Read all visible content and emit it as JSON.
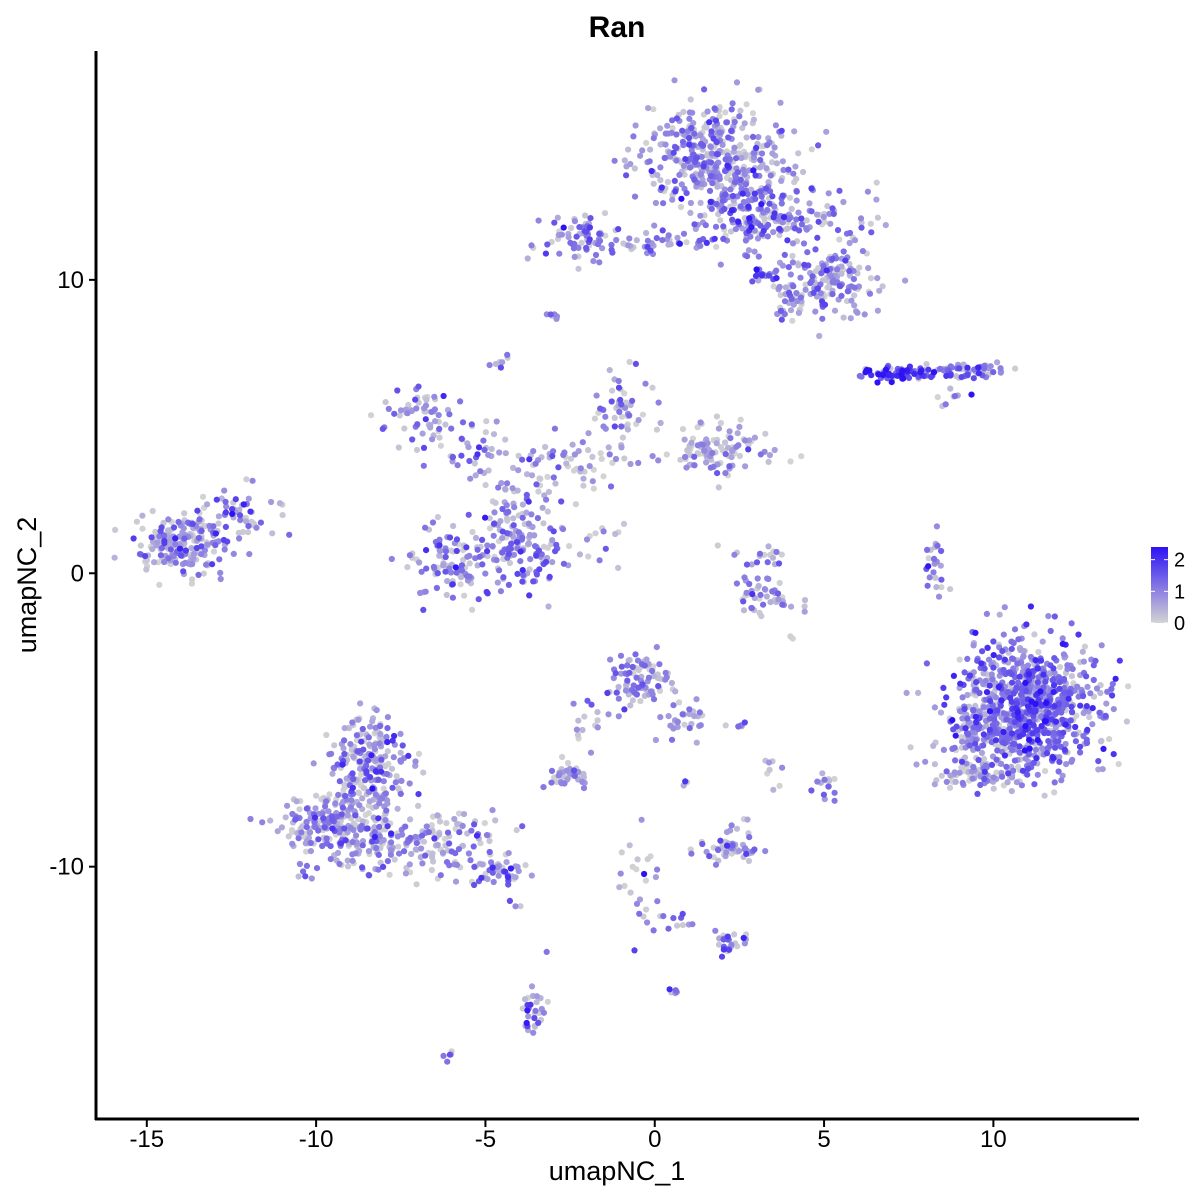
{
  "chart_data": {
    "type": "scatter",
    "title": "Ran",
    "xlabel": "umapNC_1",
    "ylabel": "umapNC_2",
    "xlim": [
      -16.5,
      14.3
    ],
    "ylim": [
      -18.6,
      17.8
    ],
    "xticks": [
      -15,
      -10,
      -5,
      0,
      5,
      10
    ],
    "yticks": [
      -10,
      0,
      10
    ],
    "grid": false,
    "color_scale": {
      "low_color": "#d3d3d3",
      "high_color": "#2d12f5",
      "min": 0,
      "max": 2.4,
      "ticks": [
        0,
        1,
        2
      ],
      "legend_position": "right"
    },
    "clusters": [
      {
        "x": 1.8,
        "y": 14.2,
        "sx": 1.0,
        "sy": 0.9,
        "n": 420,
        "mean": 0.9
      },
      {
        "x": 3.2,
        "y": 12.2,
        "sx": 1.3,
        "sy": 0.6,
        "n": 220,
        "mean": 1.0
      },
      {
        "x": 5.2,
        "y": 9.9,
        "sx": 0.7,
        "sy": 0.6,
        "n": 150,
        "mean": 0.9
      },
      {
        "x": 4.0,
        "y": 9.2,
        "sx": 0.3,
        "sy": 0.4,
        "n": 25,
        "mean": 0.8
      },
      {
        "x": 3.2,
        "y": 10.2,
        "sx": 0.3,
        "sy": 0.1,
        "n": 15,
        "mean": 1.6
      },
      {
        "x": -2.2,
        "y": 11.5,
        "sx": 0.6,
        "sy": 0.4,
        "n": 70,
        "mean": 0.9
      },
      {
        "x": 0.5,
        "y": 11.2,
        "sx": 0.9,
        "sy": 0.2,
        "n": 40,
        "mean": 0.8
      },
      {
        "x": -3.0,
        "y": 8.8,
        "sx": 0.15,
        "sy": 0.1,
        "n": 6,
        "mean": 0.8
      },
      {
        "x": -4.6,
        "y": 7.3,
        "sx": 0.15,
        "sy": 0.2,
        "n": 8,
        "mean": 0.8
      },
      {
        "x": 7.2,
        "y": 6.8,
        "sx": 0.6,
        "sy": 0.13,
        "n": 70,
        "mean": 1.9
      },
      {
        "x": 9.1,
        "y": 6.9,
        "sx": 0.7,
        "sy": 0.15,
        "n": 60,
        "mean": 1.2
      },
      {
        "x": 8.7,
        "y": 6.0,
        "sx": 0.25,
        "sy": 0.2,
        "n": 8,
        "mean": 1.0
      },
      {
        "x": -6.9,
        "y": 5.4,
        "sx": 0.5,
        "sy": 0.5,
        "n": 60,
        "mean": 1.0
      },
      {
        "x": -5.2,
        "y": 4.2,
        "sx": 0.5,
        "sy": 0.6,
        "n": 35,
        "mean": 0.9
      },
      {
        "x": -1.0,
        "y": 5.5,
        "sx": 0.5,
        "sy": 0.6,
        "n": 50,
        "mean": 0.7
      },
      {
        "x": 1.8,
        "y": 4.2,
        "sx": 0.8,
        "sy": 0.5,
        "n": 110,
        "mean": 0.6
      },
      {
        "x": -2.5,
        "y": 3.5,
        "sx": 1.0,
        "sy": 0.6,
        "n": 70,
        "mean": 0.6
      },
      {
        "x": -4.2,
        "y": 2.2,
        "sx": 0.5,
        "sy": 0.8,
        "n": 50,
        "mean": 0.9
      },
      {
        "x": -6.0,
        "y": 0.3,
        "sx": 0.6,
        "sy": 0.7,
        "n": 100,
        "mean": 1.0
      },
      {
        "x": -3.9,
        "y": 0.6,
        "sx": 0.6,
        "sy": 0.8,
        "n": 120,
        "mean": 1.1
      },
      {
        "x": -2.0,
        "y": 1.0,
        "sx": 0.5,
        "sy": 0.5,
        "n": 15,
        "mean": 0.7
      },
      {
        "x": -13.9,
        "y": 1.0,
        "sx": 0.7,
        "sy": 0.5,
        "n": 200,
        "mean": 0.9
      },
      {
        "x": -12.2,
        "y": 1.9,
        "sx": 0.6,
        "sy": 0.5,
        "n": 50,
        "mean": 1.0
      },
      {
        "x": 3.3,
        "y": -0.8,
        "sx": 0.5,
        "sy": 0.3,
        "n": 45,
        "mean": 0.8
      },
      {
        "x": 3.0,
        "y": 0.6,
        "sx": 0.4,
        "sy": 0.4,
        "n": 20,
        "mean": 0.7
      },
      {
        "x": 8.3,
        "y": 0.3,
        "sx": 0.2,
        "sy": 0.6,
        "n": 25,
        "mean": 0.8
      },
      {
        "x": 11.0,
        "y": -4.6,
        "sx": 1.0,
        "sy": 1.1,
        "n": 900,
        "mean": 1.2
      },
      {
        "x": 9.3,
        "y": -5.3,
        "sx": 0.6,
        "sy": 0.9,
        "n": 90,
        "mean": 0.9
      },
      {
        "x": 9.4,
        "y": -6.9,
        "sx": 0.6,
        "sy": 0.2,
        "n": 50,
        "mean": 0.4
      },
      {
        "x": -0.5,
        "y": -3.8,
        "sx": 0.5,
        "sy": 0.5,
        "n": 90,
        "mean": 0.8
      },
      {
        "x": 0.9,
        "y": -4.9,
        "sx": 0.4,
        "sy": 0.6,
        "n": 30,
        "mean": 0.8
      },
      {
        "x": -1.9,
        "y": -5.2,
        "sx": 0.3,
        "sy": 0.6,
        "n": 15,
        "mean": 0.8
      },
      {
        "x": -2.6,
        "y": -6.9,
        "sx": 0.3,
        "sy": 0.2,
        "n": 40,
        "mean": 0.7
      },
      {
        "x": -8.5,
        "y": -6.5,
        "sx": 0.6,
        "sy": 0.9,
        "n": 230,
        "mean": 0.8
      },
      {
        "x": -9.3,
        "y": -8.8,
        "sx": 0.9,
        "sy": 0.7,
        "n": 260,
        "mean": 0.8
      },
      {
        "x": -6.5,
        "y": -9.2,
        "sx": 1.0,
        "sy": 0.6,
        "n": 140,
        "mean": 0.7
      },
      {
        "x": -4.5,
        "y": -10.2,
        "sx": 0.4,
        "sy": 0.2,
        "n": 40,
        "mean": 1.0
      },
      {
        "x": 2.6,
        "y": -5.2,
        "sx": 0.25,
        "sy": 0.05,
        "n": 6,
        "mean": 0.8
      },
      {
        "x": 2.2,
        "y": -9.4,
        "sx": 0.5,
        "sy": 0.2,
        "n": 50,
        "mean": 0.8
      },
      {
        "x": 2.4,
        "y": -8.6,
        "sx": 0.2,
        "sy": 0.2,
        "n": 8,
        "mean": 0.8
      },
      {
        "x": 5.0,
        "y": -7.3,
        "sx": 0.15,
        "sy": 0.3,
        "n": 15,
        "mean": 0.9
      },
      {
        "x": 3.5,
        "y": -6.8,
        "sx": 0.15,
        "sy": 0.3,
        "n": 8,
        "mean": 0.7
      },
      {
        "x": 0.9,
        "y": -7.1,
        "sx": 0.1,
        "sy": 0.1,
        "n": 3,
        "mean": 0.7
      },
      {
        "x": -0.5,
        "y": -10.4,
        "sx": 0.3,
        "sy": 0.9,
        "n": 25,
        "mean": 0.8
      },
      {
        "x": 0.8,
        "y": -11.9,
        "sx": 0.4,
        "sy": 0.2,
        "n": 10,
        "mean": 0.7
      },
      {
        "x": 2.2,
        "y": -12.6,
        "sx": 0.3,
        "sy": 0.2,
        "n": 25,
        "mean": 1.0
      },
      {
        "x": 0.6,
        "y": -14.3,
        "sx": 0.1,
        "sy": 0.1,
        "n": 6,
        "mean": 0.8
      },
      {
        "x": -3.6,
        "y": -14.9,
        "sx": 0.2,
        "sy": 0.6,
        "n": 30,
        "mean": 1.0
      },
      {
        "x": -6.1,
        "y": -16.4,
        "sx": 0.1,
        "sy": 0.1,
        "n": 5,
        "mean": 1.0
      },
      {
        "x": -4.1,
        "y": -11.3,
        "sx": 0.15,
        "sy": 0.1,
        "n": 3,
        "mean": 0.6
      },
      {
        "x": 4.1,
        "y": -2.1,
        "sx": 0.1,
        "sy": 0.1,
        "n": 2,
        "mean": 0.3
      }
    ]
  }
}
